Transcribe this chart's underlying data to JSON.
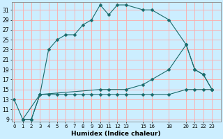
{
  "title": "",
  "xlabel": "Humidex (Indice chaleur)",
  "bg_color": "#cceeff",
  "line_color": "#1a6b6b",
  "grid_color": "#ffaaaa",
  "line1_x": [
    0,
    1,
    2,
    3,
    4,
    5,
    6,
    7,
    8,
    9,
    10,
    11,
    12,
    13,
    15,
    16,
    18,
    20,
    21,
    22,
    23
  ],
  "line1_y": [
    13,
    9,
    9,
    14,
    14,
    14,
    14,
    14,
    14,
    14,
    14,
    14,
    14,
    14,
    14,
    14,
    14,
    15,
    15,
    15,
    15
  ],
  "line2_x": [
    1,
    2,
    3,
    4,
    5,
    6,
    7,
    8,
    9,
    10,
    11,
    12,
    13,
    15,
    16,
    18,
    20,
    21,
    22,
    23
  ],
  "line2_y": [
    9,
    9,
    14,
    23,
    25,
    26,
    26,
    28,
    29,
    32,
    30,
    32,
    32,
    31,
    31,
    29,
    24,
    19,
    18,
    15
  ],
  "line3_x": [
    1,
    3,
    10,
    11,
    13,
    15,
    16,
    18,
    20,
    21,
    22,
    23
  ],
  "line3_y": [
    9,
    14,
    15,
    15,
    15,
    16,
    17,
    19,
    24,
    19,
    18,
    15
  ],
  "xlim": [
    -0.3,
    24.0
  ],
  "ylim": [
    8.5,
    32.5
  ],
  "yticks": [
    9,
    11,
    13,
    15,
    17,
    19,
    21,
    23,
    25,
    27,
    29,
    31
  ],
  "xticks": [
    0,
    1,
    2,
    3,
    4,
    5,
    6,
    7,
    8,
    9,
    10,
    11,
    12,
    13,
    15,
    16,
    18,
    20,
    21,
    22,
    23
  ],
  "xtick_labels": [
    "0",
    "1",
    "2",
    "3",
    "4",
    "5",
    "6",
    "7",
    "8",
    "9",
    "10",
    "11",
    "12",
    "13",
    "15",
    "16",
    "18",
    "20",
    "21",
    "22",
    "23"
  ],
  "marker": "D",
  "markersize": 2.5,
  "linewidth": 0.8,
  "ytick_fontsize": 5.5,
  "xtick_fontsize": 5.0,
  "xlabel_fontsize": 6.5
}
